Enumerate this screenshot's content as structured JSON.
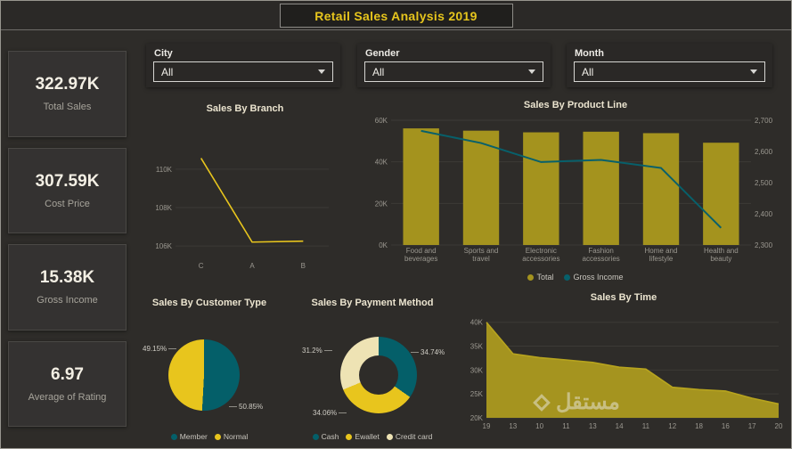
{
  "title": "Retail Sales Analysis 2019",
  "kpis": [
    {
      "value": "322.97K",
      "label": "Total Sales"
    },
    {
      "value": "307.59K",
      "label": "Cost Price"
    },
    {
      "value": "15.38K",
      "label": "Gross Income"
    },
    {
      "value": "6.97",
      "label": "Average of Rating"
    }
  ],
  "slicers": [
    {
      "label": "City",
      "value": "All"
    },
    {
      "label": "Gender",
      "value": "All"
    },
    {
      "label": "Month",
      "value": "All"
    }
  ],
  "watermark": {
    "text": "مستقل"
  },
  "chart_data": [
    {
      "id": "branch",
      "type": "line",
      "title": "Sales By Branch",
      "categories": [
        "C",
        "A",
        "B"
      ],
      "values": [
        110.57,
        106.2,
        106.25
      ],
      "ylim": [
        105.4,
        111.8
      ],
      "yticks": [
        110,
        108,
        106
      ],
      "ytick_labels": [
        "110K",
        "108K",
        "106K"
      ],
      "color": "#e8c51d"
    },
    {
      "id": "productline",
      "type": "combo",
      "title": "Sales By Product Line",
      "categories": [
        [
          "Food and",
          "beverages"
        ],
        [
          "Sports and",
          "travel"
        ],
        [
          "Electronic",
          "accessories"
        ],
        [
          "Fashion",
          "accessories"
        ],
        [
          "Home and",
          "lifestyle"
        ],
        [
          "Health and",
          "beauty"
        ]
      ],
      "bars": {
        "name": "Total",
        "color": "#a4931e",
        "axis": "left",
        "values": [
          56.1,
          55.0,
          54.2,
          54.5,
          53.8,
          49.2
        ]
      },
      "line": {
        "name": "Gross Income",
        "color": "#07606b",
        "axis": "right",
        "values": [
          2666,
          2627,
          2566,
          2573,
          2547,
          2355
        ]
      },
      "left_ylim": [
        0,
        60
      ],
      "left_yticks": [
        0,
        20,
        40,
        60
      ],
      "left_ytick_labels": [
        "0K",
        "20K",
        "40K",
        "60K"
      ],
      "right_ylim": [
        2300,
        2700
      ],
      "right_yticks": [
        2300,
        2400,
        2500,
        2600,
        2700
      ],
      "right_ytick_labels": [
        "2,300",
        "2,400",
        "2,500",
        "2,600",
        "2,700"
      ]
    },
    {
      "id": "customertype",
      "type": "pie",
      "title": "Sales By Customer Type",
      "slices": [
        {
          "label": "Member",
          "value": 50.85,
          "pct": "50.85%",
          "color": "#045f69"
        },
        {
          "label": "Normal",
          "value": 49.15,
          "pct": "49.15%",
          "color": "#e8c51d"
        }
      ]
    },
    {
      "id": "payment",
      "type": "donut",
      "title": "Sales By Payment Method",
      "slices": [
        {
          "label": "Cash",
          "value": 34.74,
          "pct": "34.74%",
          "color": "#045f69"
        },
        {
          "label": "Ewallet",
          "value": 34.06,
          "pct": "34.06%",
          "color": "#e8c51d"
        },
        {
          "label": "Credit card",
          "value": 31.2,
          "pct": "31.2%",
          "color": "#eee3b4"
        }
      ]
    },
    {
      "id": "time",
      "type": "area",
      "title": "Sales By Time",
      "categories": [
        "19",
        "13",
        "10",
        "11",
        "13",
        "14",
        "11",
        "12",
        "18",
        "16",
        "17",
        "20"
      ],
      "values": [
        40,
        33.4,
        32.6,
        32.1,
        31.6,
        30.6,
        30.2,
        26.4,
        25.9,
        25.6,
        24.1,
        22.9
      ],
      "ylim": [
        20,
        42
      ],
      "yticks": [
        20,
        25,
        30,
        35,
        40
      ],
      "ytick_labels": [
        "20K",
        "25K",
        "30K",
        "35K",
        "40K"
      ],
      "color": "#b7a41e",
      "fill": "#a5941f"
    }
  ]
}
